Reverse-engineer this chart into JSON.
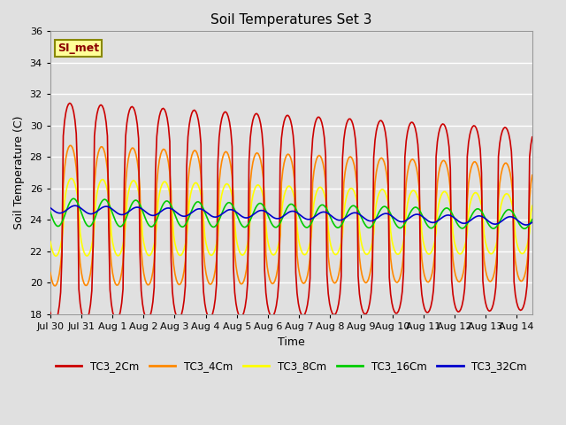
{
  "title": "Soil Temperatures Set 3",
  "xlabel": "Time",
  "ylabel": "Soil Temperature (C)",
  "ylim": [
    18,
    36
  ],
  "yticks": [
    18,
    20,
    22,
    24,
    26,
    28,
    30,
    32,
    34,
    36
  ],
  "xlim_days": [
    0,
    15.5
  ],
  "x_tick_labels": [
    "Jul 30",
    "Jul 31",
    "Aug 1",
    "Aug 2",
    "Aug 3",
    "Aug 4",
    "Aug 5",
    "Aug 6",
    "Aug 7",
    "Aug 8",
    "Aug 9",
    "Aug 10",
    "Aug 11",
    "Aug 12",
    "Aug 13",
    "Aug 14"
  ],
  "x_tick_positions": [
    0,
    1,
    2,
    3,
    4,
    5,
    6,
    7,
    8,
    9,
    10,
    11,
    12,
    13,
    14,
    15
  ],
  "series": {
    "TC3_2Cm": {
      "color": "#CC0000",
      "linewidth": 1.2
    },
    "TC3_4Cm": {
      "color": "#FF8800",
      "linewidth": 1.2
    },
    "TC3_8Cm": {
      "color": "#FFFF00",
      "linewidth": 1.2
    },
    "TC3_16Cm": {
      "color": "#00CC00",
      "linewidth": 1.2
    },
    "TC3_32Cm": {
      "color": "#0000CC",
      "linewidth": 1.2
    }
  },
  "legend_label": "SI_met",
  "background_color": "#E0E0E0",
  "grid_color": "#FFFFFF",
  "figsize": [
    6.4,
    4.8
  ],
  "dpi": 100
}
